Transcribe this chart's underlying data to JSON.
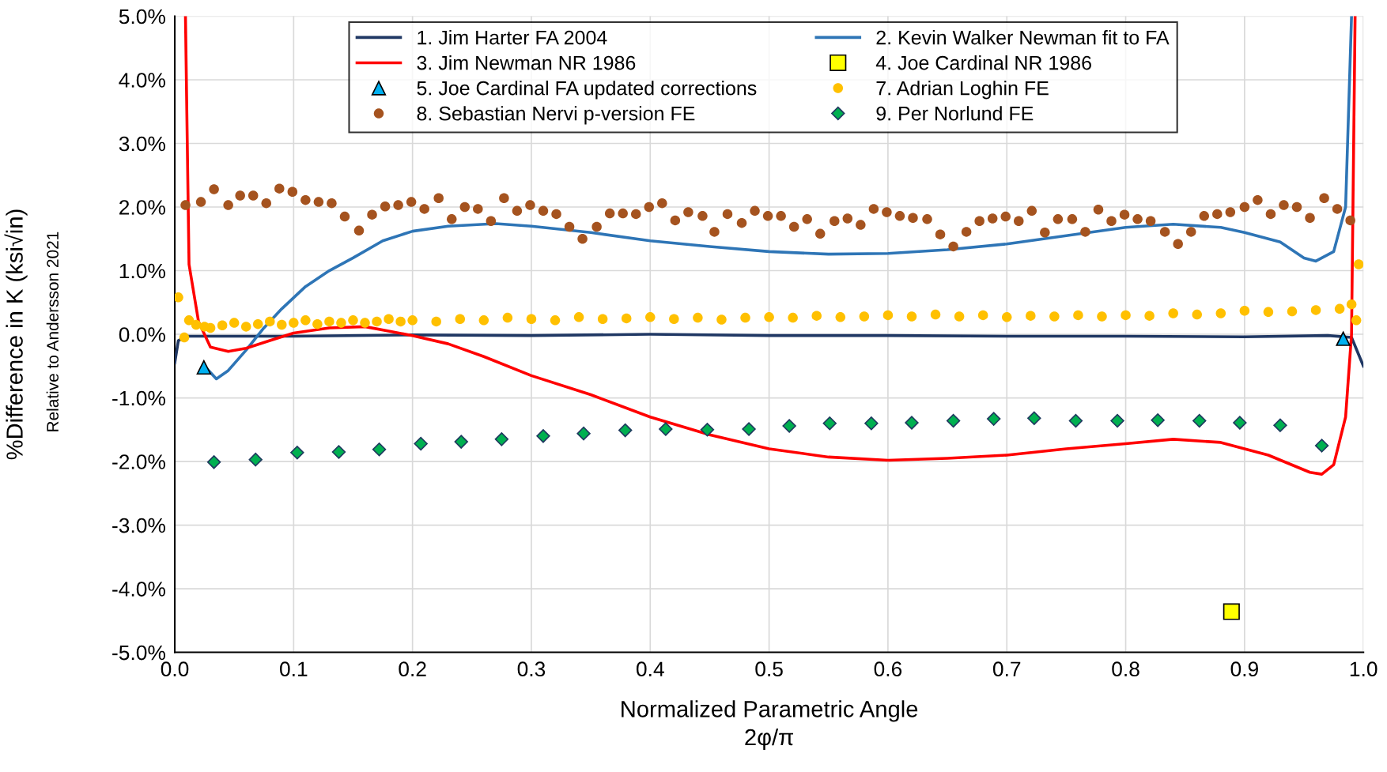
{
  "chart_data": {
    "type": "line",
    "xlabel": "Normalized Parametric Angle\n2φ/π",
    "ylabel": "%Difference in K (ksi√in)",
    "annotations": [
      "Relative to Andersson 2021"
    ],
    "xlim": [
      0,
      1
    ],
    "xticks": [
      {
        "value": 0,
        "label": "0.0"
      },
      {
        "value": 0.1,
        "label": "0.1"
      },
      {
        "value": 0.2,
        "label": "0.2"
      },
      {
        "value": 0.3,
        "label": "0.3"
      },
      {
        "value": 0.4,
        "label": "0.4"
      },
      {
        "value": 0.5,
        "label": "0.5"
      },
      {
        "value": 0.6,
        "label": "0.6"
      },
      {
        "value": 0.7,
        "label": "0.7"
      },
      {
        "value": 0.8,
        "label": "0.8"
      },
      {
        "value": 0.9,
        "label": "0.9"
      },
      {
        "value": 1,
        "label": "1.0"
      }
    ],
    "ylim": [
      -5,
      5
    ],
    "yticks": [
      {
        "value": -5,
        "label": "-5.0%"
      },
      {
        "value": -4,
        "label": "-4.0%"
      },
      {
        "value": -3,
        "label": "-3.0%"
      },
      {
        "value": -2,
        "label": "-2.0%"
      },
      {
        "value": -1,
        "label": "-1.0%"
      },
      {
        "value": 0,
        "label": "0.0%"
      },
      {
        "value": 1,
        "label": "1.0%"
      },
      {
        "value": 2,
        "label": "2.0%"
      },
      {
        "value": 3,
        "label": "3.0%"
      },
      {
        "value": 4,
        "label": "4.0%"
      },
      {
        "value": 5,
        "label": "5.0%"
      }
    ],
    "grid": true,
    "legend": "top",
    "series": [
      {
        "name": "1. Jim Harter FA 2004",
        "color": "#203864",
        "x": [
          0,
          0.003,
          0.01,
          0.1,
          0.2,
          0.3,
          0.4,
          0.5,
          0.6,
          0.7,
          0.8,
          0.9,
          0.97,
          0.99,
          1.0
        ],
        "values": [
          -0.45,
          -0.1,
          -0.03,
          -0.03,
          -0.01,
          -0.02,
          0.0,
          -0.02,
          -0.02,
          -0.03,
          -0.03,
          -0.04,
          -0.02,
          -0.05,
          -0.5
        ]
      },
      {
        "name": "2. Kevin Walker Newman fit to FA",
        "color": "#2e75b6",
        "x": [
          0.025,
          0.035,
          0.045,
          0.06,
          0.075,
          0.09,
          0.11,
          0.13,
          0.15,
          0.175,
          0.2,
          0.23,
          0.27,
          0.3,
          0.35,
          0.4,
          0.45,
          0.5,
          0.55,
          0.6,
          0.65,
          0.7,
          0.75,
          0.8,
          0.84,
          0.88,
          0.9,
          0.93,
          0.95,
          0.96,
          0.975,
          0.985,
          0.99
        ],
        "values": [
          -0.5,
          -0.7,
          -0.57,
          -0.25,
          0.1,
          0.4,
          0.75,
          1.0,
          1.2,
          1.47,
          1.62,
          1.7,
          1.74,
          1.7,
          1.6,
          1.47,
          1.38,
          1.3,
          1.26,
          1.27,
          1.33,
          1.42,
          1.55,
          1.68,
          1.73,
          1.68,
          1.6,
          1.45,
          1.2,
          1.15,
          1.3,
          2.0,
          5.0
        ]
      },
      {
        "name": "3. Jim Newman NR 1986",
        "color": "#ff0000",
        "x": [
          0.009,
          0.012,
          0.02,
          0.03,
          0.045,
          0.06,
          0.08,
          0.1,
          0.13,
          0.16,
          0.2,
          0.23,
          0.26,
          0.3,
          0.35,
          0.4,
          0.45,
          0.5,
          0.55,
          0.6,
          0.65,
          0.7,
          0.75,
          0.8,
          0.84,
          0.88,
          0.92,
          0.955,
          0.965,
          0.975,
          0.985,
          0.99,
          0.993
        ],
        "values": [
          5.0,
          1.1,
          0.2,
          -0.2,
          -0.27,
          -0.22,
          -0.1,
          0.02,
          0.1,
          0.12,
          -0.02,
          -0.15,
          -0.35,
          -0.65,
          -0.95,
          -1.3,
          -1.58,
          -1.8,
          -1.93,
          -1.98,
          -1.95,
          -1.9,
          -1.8,
          -1.72,
          -1.65,
          -1.7,
          -1.9,
          -2.17,
          -2.2,
          -2.05,
          -1.3,
          0.0,
          5.0
        ]
      },
      {
        "name": "4. Joe Cardinal NR 1986",
        "type": "scatter",
        "marker": "square",
        "color": "#ffff00",
        "x": [
          0.889
        ],
        "values": [
          -4.36
        ]
      },
      {
        "name": "5. Joe Cardinal FA updated corrections",
        "type": "scatter",
        "marker": "triangle",
        "color": "#00b0f0",
        "x": [
          0.0245,
          0.983
        ],
        "values": [
          -0.52,
          -0.07
        ]
      },
      {
        "name": "7. Adrian Loghin FE",
        "type": "scatter",
        "marker": "circle",
        "color": "#ffc000",
        "x": [
          0.003,
          0.008,
          0.012,
          0.018,
          0.025,
          0.03,
          0.04,
          0.05,
          0.06,
          0.07,
          0.08,
          0.09,
          0.1,
          0.11,
          0.12,
          0.13,
          0.14,
          0.15,
          0.16,
          0.17,
          0.18,
          0.19,
          0.2,
          0.22,
          0.24,
          0.26,
          0.28,
          0.3,
          0.32,
          0.34,
          0.36,
          0.38,
          0.4,
          0.42,
          0.44,
          0.46,
          0.48,
          0.5,
          0.52,
          0.54,
          0.56,
          0.58,
          0.6,
          0.62,
          0.64,
          0.66,
          0.68,
          0.7,
          0.72,
          0.74,
          0.76,
          0.78,
          0.8,
          0.82,
          0.84,
          0.86,
          0.88,
          0.9,
          0.92,
          0.94,
          0.96,
          0.98,
          0.99,
          0.994,
          0.996
        ],
        "values": [
          0.58,
          -0.05,
          0.22,
          0.15,
          0.12,
          0.1,
          0.14,
          0.18,
          0.12,
          0.16,
          0.2,
          0.15,
          0.18,
          0.22,
          0.16,
          0.2,
          0.18,
          0.22,
          0.18,
          0.2,
          0.24,
          0.2,
          0.22,
          0.2,
          0.24,
          0.22,
          0.26,
          0.24,
          0.22,
          0.27,
          0.24,
          0.25,
          0.27,
          0.24,
          0.26,
          0.23,
          0.26,
          0.27,
          0.26,
          0.29,
          0.27,
          0.28,
          0.3,
          0.28,
          0.31,
          0.28,
          0.3,
          0.27,
          0.29,
          0.28,
          0.3,
          0.28,
          0.3,
          0.29,
          0.33,
          0.31,
          0.33,
          0.37,
          0.35,
          0.36,
          0.38,
          0.4,
          0.47,
          0.22,
          1.1
        ]
      },
      {
        "name": "8. Sebastian Nervi p-version FE",
        "type": "scatter",
        "marker": "circle",
        "color": "#a5531f",
        "x": [
          0.009,
          0.022,
          0.033,
          0.045,
          0.055,
          0.066,
          0.077,
          0.088,
          0.099,
          0.11,
          0.121,
          0.132,
          0.143,
          0.155,
          0.166,
          0.177,
          0.188,
          0.199,
          0.21,
          0.222,
          0.233,
          0.244,
          0.255,
          0.266,
          0.277,
          0.288,
          0.299,
          0.31,
          0.321,
          0.332,
          0.343,
          0.355,
          0.366,
          0.377,
          0.388,
          0.399,
          0.41,
          0.421,
          0.432,
          0.444,
          0.454,
          0.465,
          0.477,
          0.488,
          0.499,
          0.51,
          0.521,
          0.532,
          0.543,
          0.555,
          0.566,
          0.577,
          0.588,
          0.599,
          0.61,
          0.621,
          0.633,
          0.644,
          0.655,
          0.666,
          0.677,
          0.688,
          0.699,
          0.71,
          0.721,
          0.732,
          0.743,
          0.755,
          0.766,
          0.777,
          0.788,
          0.799,
          0.81,
          0.821,
          0.833,
          0.844,
          0.855,
          0.866,
          0.877,
          0.888,
          0.9,
          0.911,
          0.922,
          0.933,
          0.944,
          0.955,
          0.967,
          0.978,
          0.989
        ],
        "values": [
          2.03,
          2.08,
          2.28,
          2.03,
          2.18,
          2.18,
          2.06,
          2.29,
          2.24,
          2.11,
          2.08,
          2.06,
          1.85,
          1.63,
          1.88,
          2.01,
          2.03,
          2.08,
          1.97,
          2.14,
          1.81,
          2.0,
          1.97,
          1.78,
          2.14,
          1.94,
          2.03,
          1.94,
          1.89,
          1.69,
          1.5,
          1.69,
          1.9,
          1.9,
          1.89,
          2.0,
          2.06,
          1.79,
          1.92,
          1.86,
          1.61,
          1.89,
          1.75,
          1.94,
          1.86,
          1.86,
          1.69,
          1.81,
          1.58,
          1.78,
          1.82,
          1.72,
          1.97,
          1.92,
          1.86,
          1.83,
          1.81,
          1.57,
          1.38,
          1.61,
          1.78,
          1.82,
          1.85,
          1.78,
          1.94,
          1.6,
          1.81,
          1.81,
          1.61,
          1.96,
          1.78,
          1.88,
          1.81,
          1.78,
          1.61,
          1.42,
          1.61,
          1.86,
          1.89,
          1.92,
          2.0,
          2.11,
          1.89,
          2.03,
          2.0,
          1.83,
          2.14,
          1.97,
          1.79
        ]
      },
      {
        "name": "9. Per Norlund FE",
        "type": "scatter",
        "marker": "diamond",
        "color": "#00b050",
        "x": [
          0.033,
          0.068,
          0.103,
          0.138,
          0.172,
          0.207,
          0.241,
          0.275,
          0.31,
          0.344,
          0.379,
          0.413,
          0.448,
          0.483,
          0.517,
          0.551,
          0.586,
          0.62,
          0.655,
          0.689,
          0.723,
          0.758,
          0.793,
          0.827,
          0.862,
          0.896,
          0.93,
          0.965
        ],
        "values": [
          -2.01,
          -1.97,
          -1.86,
          -1.85,
          -1.81,
          -1.72,
          -1.69,
          -1.65,
          -1.6,
          -1.56,
          -1.51,
          -1.49,
          -1.5,
          -1.49,
          -1.44,
          -1.4,
          -1.4,
          -1.39,
          -1.36,
          -1.33,
          -1.32,
          -1.36,
          -1.36,
          -1.35,
          -1.36,
          -1.39,
          -1.43,
          -1.75
        ]
      }
    ]
  }
}
